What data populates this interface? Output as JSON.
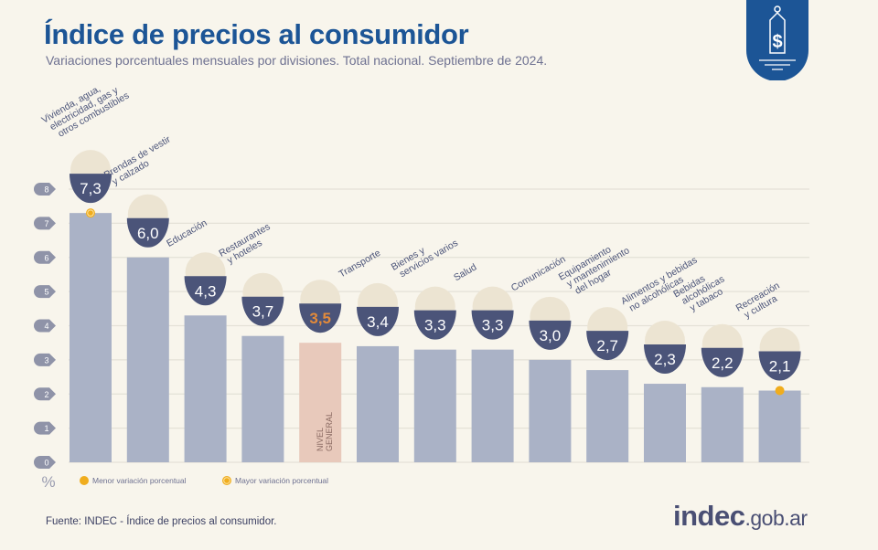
{
  "header": {
    "title": "Índice de precios al consumidor",
    "subtitle": "Variaciones porcentuales mensuales por divisiones. Total nacional. Septiembre de 2024."
  },
  "logo": {
    "icon": "price-tag-dollar-icon",
    "color": "#1c5596"
  },
  "footer": {
    "source": "Fuente: INDEC - Índice de precios al consumidor.",
    "brand_bold": "indec",
    "brand_suffix": ".gob.ar"
  },
  "chart_data": {
    "type": "bar",
    "title": "Índice de precios al consumidor",
    "ylabel": "%",
    "ylim": [
      0,
      8
    ],
    "yticks": [
      0,
      1,
      2,
      3,
      4,
      5,
      6,
      7,
      8
    ],
    "grid": true,
    "categories": [
      [
        "Vivienda, agua,",
        "electricidad, gas y",
        "otros combustibles"
      ],
      [
        "Prendas de vestir",
        "y calzado"
      ],
      [
        "Educación"
      ],
      [
        "Restaurantes",
        "y hoteles"
      ],
      [
        "NIVEL",
        "GENERAL"
      ],
      [
        "Transporte"
      ],
      [
        "Bienes y",
        "servicios varios"
      ],
      [
        "Salud"
      ],
      [
        "Comunicación"
      ],
      [
        "Equipamiento",
        "y mantenimiento",
        "del hogar"
      ],
      [
        "Alimentos y bebidas",
        "no alcohólicas"
      ],
      [
        "Bebidas",
        "alcohólicas",
        "y tabaco"
      ],
      [
        "Recreación",
        "y cultura"
      ]
    ],
    "values": [
      7.3,
      6.0,
      4.3,
      3.7,
      3.5,
      3.4,
      3.3,
      3.3,
      3.0,
      2.7,
      2.3,
      2.2,
      2.1
    ],
    "value_labels": [
      "7,3",
      "6,0",
      "4,3",
      "3,7",
      "3,5",
      "3,4",
      "3,3",
      "3,3",
      "3,0",
      "2,7",
      "2,3",
      "2,2",
      "2,1"
    ],
    "icons": [
      "bulb-plug-icon",
      "tshirt-shoe-icon",
      "notebook-icon",
      "plate-cutlery-icon",
      "shopping-bag-icon",
      "sube-card-icon",
      "comb-scissors-icon",
      "first-aid-icon",
      "smartphone-icon",
      "air-conditioner-icon",
      "food-icon",
      "bottle-glass-icon",
      "sun-umbrella-icon"
    ],
    "highlight_index": 4,
    "max_index": 0,
    "min_index": 12,
    "legend": [
      {
        "label": "Menor variación porcentual",
        "marker": "filled-dot"
      },
      {
        "label": "Mayor variación porcentual",
        "marker": "ringed-dot"
      }
    ],
    "legend_placement": "bottom-left",
    "colors": {
      "bar": "#aab2c6",
      "highlight_bar": "#e8c9bb",
      "badge": "#4b5479",
      "highlight_value": "#e38a3a",
      "marker": "#f0ad1e",
      "grid": "#e4e1d7",
      "label": "#4b5479"
    }
  }
}
